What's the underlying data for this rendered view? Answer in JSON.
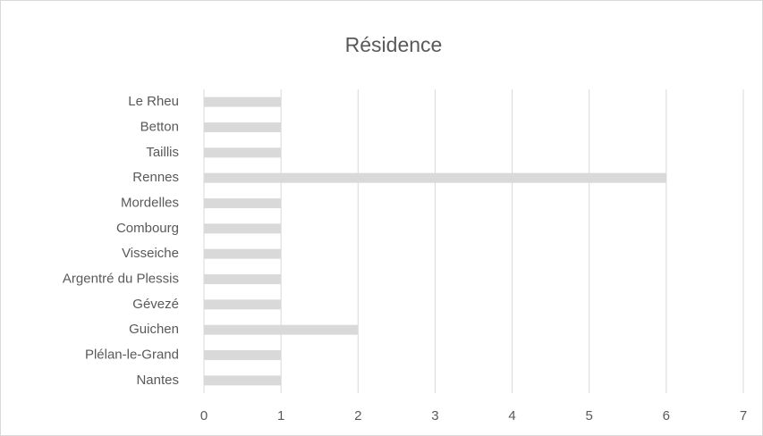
{
  "chart_data": {
    "type": "bar",
    "orientation": "horizontal",
    "title": "Résidence",
    "categories": [
      "Le Rheu",
      "Betton",
      "Taillis",
      "Rennes",
      "Mordelles",
      "Combourg",
      "Visseiche",
      "Argentré du Plessis",
      "Gévezé",
      "Guichen",
      "Plélan-le-Grand",
      "Nantes"
    ],
    "values": [
      1,
      1,
      1,
      6,
      1,
      1,
      1,
      1,
      1,
      2,
      1,
      1
    ],
    "color": "#d9d9d9",
    "xlim": [
      0,
      7
    ],
    "xticks": [
      0,
      1,
      2,
      3,
      4,
      5,
      6,
      7
    ],
    "grid": true
  }
}
